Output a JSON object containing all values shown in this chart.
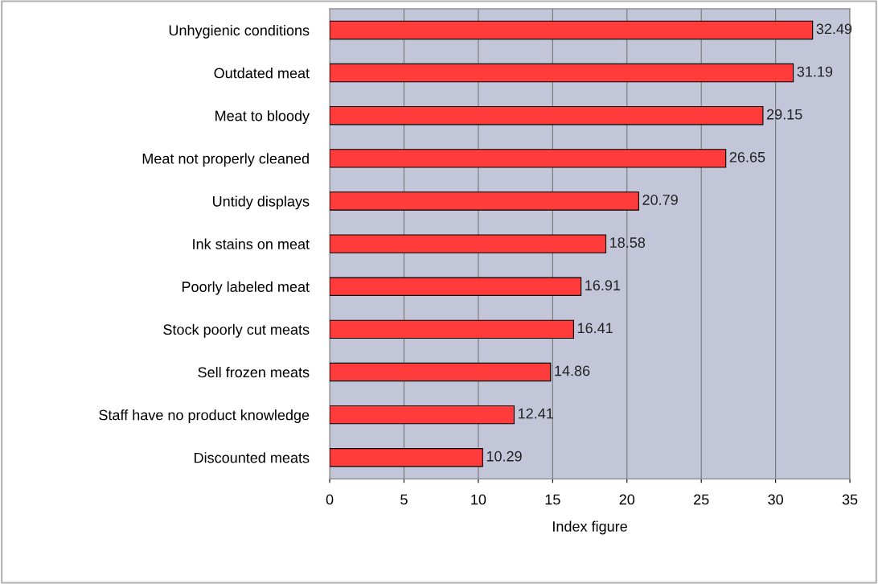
{
  "chart_data": {
    "type": "bar",
    "orientation": "horizontal",
    "xlabel": "Index figure",
    "categories": [
      "Unhygienic conditions",
      "Outdated meat",
      "Meat to bloody",
      "Meat not properly cleaned",
      "Untidy displays",
      "Ink stains on meat",
      "Poorly labeled meat",
      "Stock poorly cut meats",
      "Sell frozen meats",
      "Staff have no product knowledge",
      "Discounted meats"
    ],
    "values": [
      32.49,
      31.19,
      29.15,
      26.65,
      20.79,
      18.58,
      16.91,
      16.41,
      14.86,
      12.41,
      10.29
    ],
    "color": "#ff3b3b",
    "data_labels": true,
    "xlim": [
      0,
      35
    ],
    "xticks": [
      0,
      5,
      10,
      15,
      20,
      25,
      30,
      35
    ],
    "grid": "x"
  }
}
